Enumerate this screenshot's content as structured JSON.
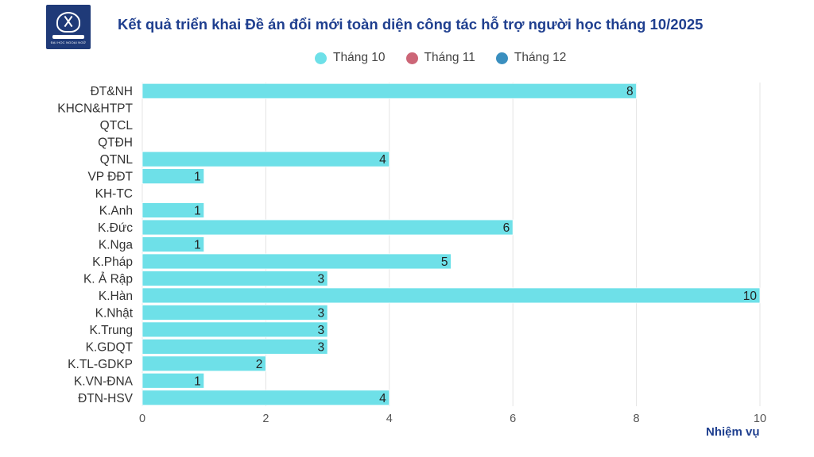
{
  "header": {
    "title": "Kết quả  triển khai Đề án đổi mới toàn diện công tác hỗ trợ người học tháng 10/2025",
    "logo_text": "ĐẠI HỌC NGOẠI NGỮ",
    "logo_emblem_text": "ULIS"
  },
  "legend": {
    "items": [
      {
        "label": "Tháng 10",
        "color": "#6ee0e8"
      },
      {
        "label": "Tháng 11",
        "color": "#cc6677"
      },
      {
        "label": "Tháng 12",
        "color": "#3a8fbf"
      }
    ],
    "placement": "top-center"
  },
  "chart_data": {
    "type": "bar",
    "orientation": "horizontal",
    "categories": [
      "ĐT&NH",
      "KHCN&HTPT",
      "QTCL",
      "QTĐH",
      "QTNL",
      "VP ĐĐT",
      "KH-TC",
      "K.Anh",
      "K.Đức",
      "K.Nga",
      "K.Pháp",
      "K. Ả Rập",
      "K.Hàn",
      "K.Nhật",
      "K.Trung",
      "K.GDQT",
      "K.TL-GDKP",
      "K.VN-ĐNA",
      "ĐTN-HSV"
    ],
    "series": [
      {
        "name": "Tháng 10",
        "color": "#6ee0e8",
        "values": [
          8,
          0,
          0,
          0,
          4,
          1,
          0,
          1,
          6,
          1,
          5,
          3,
          10,
          3,
          3,
          3,
          2,
          1,
          4
        ]
      },
      {
        "name": "Tháng 11",
        "color": "#cc6677",
        "values": [
          0,
          0,
          0,
          0,
          0,
          0,
          0,
          0,
          0,
          0,
          0,
          0,
          0,
          0,
          0,
          0,
          0,
          0,
          0
        ]
      },
      {
        "name": "Tháng 12",
        "color": "#3a8fbf",
        "values": [
          0,
          0,
          0,
          0,
          0,
          0,
          0,
          0,
          0,
          0,
          0,
          0,
          0,
          0,
          0,
          0,
          0,
          0,
          0
        ]
      }
    ],
    "xlabel": "Nhiệm vụ",
    "ylabel": "",
    "xlim": [
      0,
      10
    ],
    "xticks": [
      0,
      2,
      4,
      6,
      8,
      10
    ],
    "grid": true
  }
}
